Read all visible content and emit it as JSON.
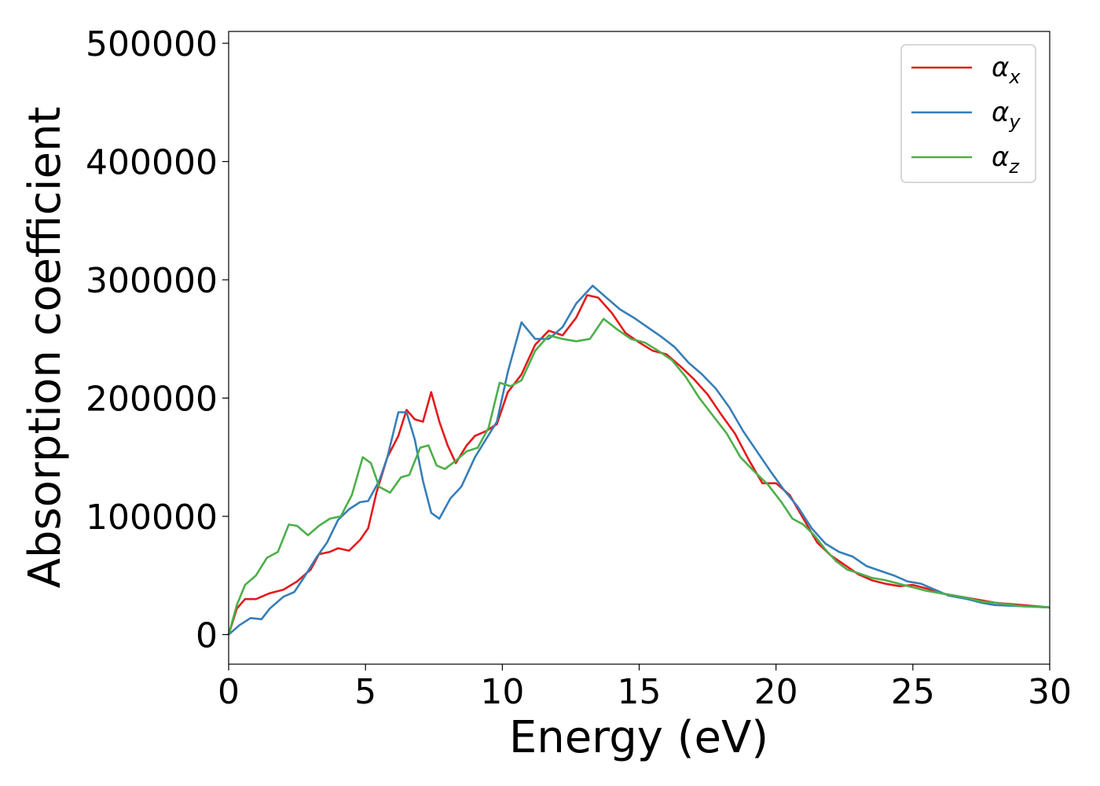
{
  "chart_data": {
    "type": "line",
    "xlabel": "Energy (eV)",
    "ylabel": "Absorption coefficient",
    "xlim": [
      0,
      30
    ],
    "ylim": [
      -25000,
      510000
    ],
    "xticks": [
      0,
      5,
      10,
      15,
      20,
      25,
      30
    ],
    "xtick_labels": [
      "0",
      "5",
      "10",
      "15",
      "20",
      "25",
      "30"
    ],
    "yticks": [
      0,
      100000,
      200000,
      300000,
      400000,
      500000
    ],
    "ytick_labels": [
      "0",
      "100000",
      "200000",
      "300000",
      "400000",
      "500000"
    ],
    "grid": false,
    "legend_position": "top-right",
    "series": [
      {
        "name": "α",
        "subscript": "x",
        "color": "#e41a1c",
        "points": [
          [
            0,
            0
          ],
          [
            0.3,
            22000
          ],
          [
            0.6,
            30000
          ],
          [
            1,
            30000
          ],
          [
            1.5,
            35000
          ],
          [
            2,
            38000
          ],
          [
            2.5,
            45000
          ],
          [
            3,
            55000
          ],
          [
            3.3,
            68000
          ],
          [
            3.7,
            70000
          ],
          [
            4,
            73000
          ],
          [
            4.4,
            71000
          ],
          [
            4.8,
            80000
          ],
          [
            5.1,
            90000
          ],
          [
            5.4,
            120000
          ],
          [
            5.8,
            150000
          ],
          [
            6.2,
            168000
          ],
          [
            6.5,
            190000
          ],
          [
            6.8,
            182000
          ],
          [
            7.1,
            180000
          ],
          [
            7.4,
            205000
          ],
          [
            7.7,
            180000
          ],
          [
            8,
            160000
          ],
          [
            8.3,
            145000
          ],
          [
            8.7,
            160000
          ],
          [
            9,
            168000
          ],
          [
            9.4,
            172000
          ],
          [
            9.8,
            178000
          ],
          [
            10.2,
            205000
          ],
          [
            10.7,
            220000
          ],
          [
            11.2,
            245000
          ],
          [
            11.7,
            257000
          ],
          [
            12.2,
            253000
          ],
          [
            12.7,
            268000
          ],
          [
            13.1,
            287000
          ],
          [
            13.5,
            285000
          ],
          [
            14,
            272000
          ],
          [
            14.5,
            255000
          ],
          [
            15,
            247000
          ],
          [
            15.5,
            240000
          ],
          [
            16,
            237000
          ],
          [
            16.5,
            227000
          ],
          [
            17,
            216000
          ],
          [
            17.5,
            203000
          ],
          [
            18,
            186000
          ],
          [
            18.5,
            170000
          ],
          [
            19,
            148000
          ],
          [
            19.5,
            128000
          ],
          [
            20,
            128000
          ],
          [
            20.5,
            118000
          ],
          [
            21,
            98000
          ],
          [
            21.5,
            78000
          ],
          [
            22,
            67000
          ],
          [
            22.5,
            59000
          ],
          [
            23,
            51000
          ],
          [
            23.5,
            46000
          ],
          [
            24,
            43000
          ],
          [
            24.5,
            41000
          ],
          [
            25,
            42000
          ],
          [
            25.5,
            39000
          ],
          [
            26,
            35000
          ],
          [
            27,
            31000
          ],
          [
            28,
            27000
          ],
          [
            29,
            25000
          ],
          [
            30,
            23000
          ]
        ]
      },
      {
        "name": "α",
        "subscript": "y",
        "color": "#377eb8",
        "points": [
          [
            0,
            0
          ],
          [
            0.4,
            8000
          ],
          [
            0.8,
            14000
          ],
          [
            1.2,
            13000
          ],
          [
            1.5,
            22000
          ],
          [
            2,
            32000
          ],
          [
            2.4,
            36000
          ],
          [
            2.8,
            50000
          ],
          [
            3.2,
            65000
          ],
          [
            3.6,
            78000
          ],
          [
            4,
            97000
          ],
          [
            4.4,
            106000
          ],
          [
            4.8,
            112000
          ],
          [
            5.1,
            113000
          ],
          [
            5.5,
            130000
          ],
          [
            5.8,
            150000
          ],
          [
            6.2,
            188000
          ],
          [
            6.5,
            188000
          ],
          [
            6.8,
            165000
          ],
          [
            7.1,
            130000
          ],
          [
            7.4,
            103000
          ],
          [
            7.7,
            98000
          ],
          [
            8.1,
            115000
          ],
          [
            8.5,
            125000
          ],
          [
            9,
            150000
          ],
          [
            9.4,
            165000
          ],
          [
            9.8,
            180000
          ],
          [
            10.2,
            222000
          ],
          [
            10.7,
            264000
          ],
          [
            11.2,
            250000
          ],
          [
            11.7,
            250000
          ],
          [
            12.2,
            260000
          ],
          [
            12.7,
            280000
          ],
          [
            13.3,
            295000
          ],
          [
            13.8,
            285000
          ],
          [
            14.3,
            275000
          ],
          [
            14.8,
            268000
          ],
          [
            15.3,
            260000
          ],
          [
            15.8,
            252000
          ],
          [
            16.3,
            243000
          ],
          [
            16.8,
            230000
          ],
          [
            17.3,
            220000
          ],
          [
            17.8,
            208000
          ],
          [
            18.3,
            192000
          ],
          [
            18.8,
            172000
          ],
          [
            19.3,
            155000
          ],
          [
            19.8,
            138000
          ],
          [
            20.3,
            122000
          ],
          [
            20.8,
            108000
          ],
          [
            21.3,
            90000
          ],
          [
            21.8,
            77000
          ],
          [
            22.3,
            70000
          ],
          [
            22.8,
            66000
          ],
          [
            23.3,
            58000
          ],
          [
            23.8,
            54000
          ],
          [
            24.3,
            50000
          ],
          [
            24.8,
            45000
          ],
          [
            25.3,
            43000
          ],
          [
            25.8,
            38000
          ],
          [
            26.3,
            33000
          ],
          [
            27,
            30000
          ],
          [
            27.5,
            27000
          ],
          [
            28,
            25000
          ],
          [
            29,
            24000
          ],
          [
            30,
            23000
          ]
        ]
      },
      {
        "name": "α",
        "subscript": "z",
        "color": "#4daf4a",
        "points": [
          [
            0,
            0
          ],
          [
            0.3,
            25000
          ],
          [
            0.6,
            42000
          ],
          [
            1,
            50000
          ],
          [
            1.4,
            65000
          ],
          [
            1.8,
            70000
          ],
          [
            2.2,
            93000
          ],
          [
            2.5,
            92000
          ],
          [
            2.9,
            84000
          ],
          [
            3.3,
            92000
          ],
          [
            3.7,
            98000
          ],
          [
            4.1,
            100000
          ],
          [
            4.5,
            118000
          ],
          [
            4.9,
            150000
          ],
          [
            5.2,
            145000
          ],
          [
            5.5,
            125000
          ],
          [
            5.9,
            120000
          ],
          [
            6.3,
            133000
          ],
          [
            6.6,
            135000
          ],
          [
            7,
            158000
          ],
          [
            7.3,
            160000
          ],
          [
            7.6,
            143000
          ],
          [
            7.9,
            140000
          ],
          [
            8.3,
            147000
          ],
          [
            8.7,
            155000
          ],
          [
            9.1,
            158000
          ],
          [
            9.5,
            175000
          ],
          [
            9.9,
            213000
          ],
          [
            10.3,
            210000
          ],
          [
            10.7,
            215000
          ],
          [
            11.2,
            240000
          ],
          [
            11.7,
            253000
          ],
          [
            12.2,
            250000
          ],
          [
            12.7,
            248000
          ],
          [
            13.2,
            250000
          ],
          [
            13.7,
            267000
          ],
          [
            14.2,
            258000
          ],
          [
            14.7,
            250000
          ],
          [
            15.2,
            247000
          ],
          [
            15.7,
            240000
          ],
          [
            16.2,
            232000
          ],
          [
            16.7,
            218000
          ],
          [
            17.2,
            200000
          ],
          [
            17.7,
            185000
          ],
          [
            18.2,
            170000
          ],
          [
            18.7,
            150000
          ],
          [
            19.2,
            138000
          ],
          [
            19.7,
            127000
          ],
          [
            20.2,
            112000
          ],
          [
            20.6,
            98000
          ],
          [
            21,
            93000
          ],
          [
            21.4,
            84000
          ],
          [
            21.8,
            72000
          ],
          [
            22.2,
            62000
          ],
          [
            22.6,
            55000
          ],
          [
            23,
            52000
          ],
          [
            23.5,
            48000
          ],
          [
            24,
            46000
          ],
          [
            24.5,
            43000
          ],
          [
            25,
            40000
          ],
          [
            25.5,
            37000
          ],
          [
            26,
            35000
          ],
          [
            27,
            31000
          ],
          [
            27.5,
            28000
          ],
          [
            28,
            27000
          ],
          [
            29,
            24000
          ],
          [
            30,
            23000
          ]
        ]
      }
    ]
  }
}
